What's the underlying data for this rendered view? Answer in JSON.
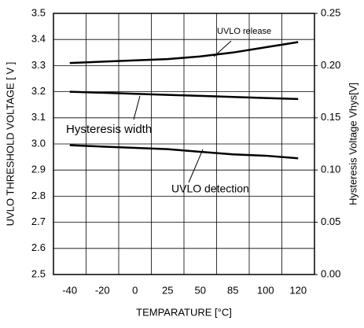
{
  "chart_data": {
    "type": "line",
    "categories": [
      "-40",
      "-20",
      "0",
      "25",
      "50",
      "85",
      "100",
      "120"
    ],
    "xlabel": "TEMPARATURE [°C]",
    "ylabel": "UVLO THRESHOLD VOLTAGE [ V ]",
    "y2label": "Hysteresis Voltage Vhys[V]",
    "ylim": [
      2.5,
      3.5
    ],
    "yticks": [
      2.5,
      2.6,
      2.7,
      2.8,
      2.9,
      {
        "value": 3.0,
        "label": "3.0"
      },
      3.1,
      3.2,
      3.3,
      3.4,
      3.5
    ],
    "y2lim": [
      0,
      0.25
    ],
    "y2ticks": [
      {
        "value": 0,
        "label": "0.00"
      },
      0.05,
      {
        "value": 0.1,
        "label": "0.10"
      },
      0.15,
      {
        "value": 0.2,
        "label": "0.20"
      },
      0.25
    ],
    "grid": true,
    "series": [
      {
        "name": "UVLO release",
        "color": "#000000",
        "values": [
          3.31,
          3.315,
          3.32,
          3.325,
          3.335,
          3.35,
          3.37,
          3.39
        ]
      },
      {
        "name": "Hysteresis width",
        "color": "#000000",
        "axis": "y2",
        "values": [
          0.175,
          0.174,
          0.173,
          0.172,
          0.171,
          0.17,
          0.169,
          0.168
        ]
      },
      {
        "name": "UVLO detection",
        "color": "#000000",
        "values": [
          2.995,
          2.99,
          2.985,
          2.98,
          2.97,
          2.96,
          2.955,
          2.945
        ]
      }
    ]
  }
}
